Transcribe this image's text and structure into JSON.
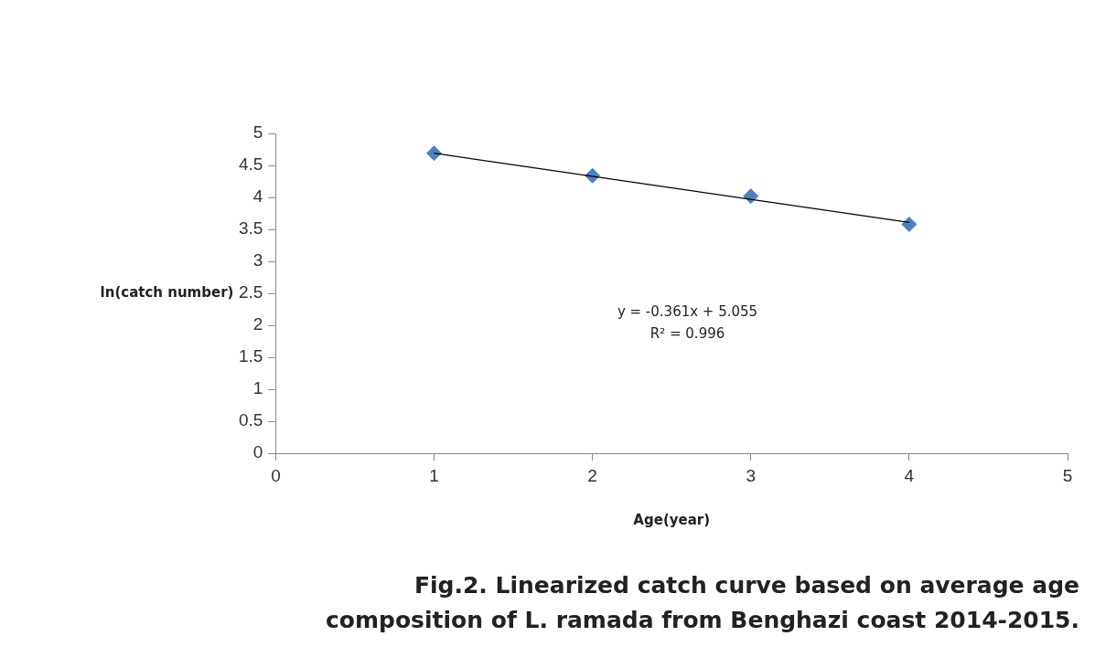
{
  "chart_data": {
    "type": "scatter",
    "xlabel": "Age(year)",
    "ylabel": "ln(catch number)",
    "series": [
      {
        "type": "scatter",
        "color": "#4f81bd",
        "marker": "diamond",
        "x": [
          1,
          2,
          3,
          4
        ],
        "values": [
          4.69,
          4.34,
          4.02,
          3.58
        ]
      },
      {
        "type": "line",
        "color": "#000000",
        "marker": "none",
        "x": [
          1,
          4
        ],
        "values": [
          4.69,
          3.61
        ]
      }
    ],
    "xlim": [
      0,
      5
    ],
    "xticks": [
      0,
      1,
      2,
      3,
      4,
      5
    ],
    "ylim": [
      0,
      5
    ],
    "yticks": [
      0,
      0.5,
      1,
      1.5,
      2,
      2.5,
      3,
      3.5,
      4,
      4.5,
      5
    ],
    "grid": false,
    "legend": false,
    "annotations": [
      "y = -0.361x + 5.055",
      "R² = 0.996",
      "Fig.2. Linearized catch curve based on average age composition of L. ramada from Benghazi coast 2014-2015."
    ]
  }
}
